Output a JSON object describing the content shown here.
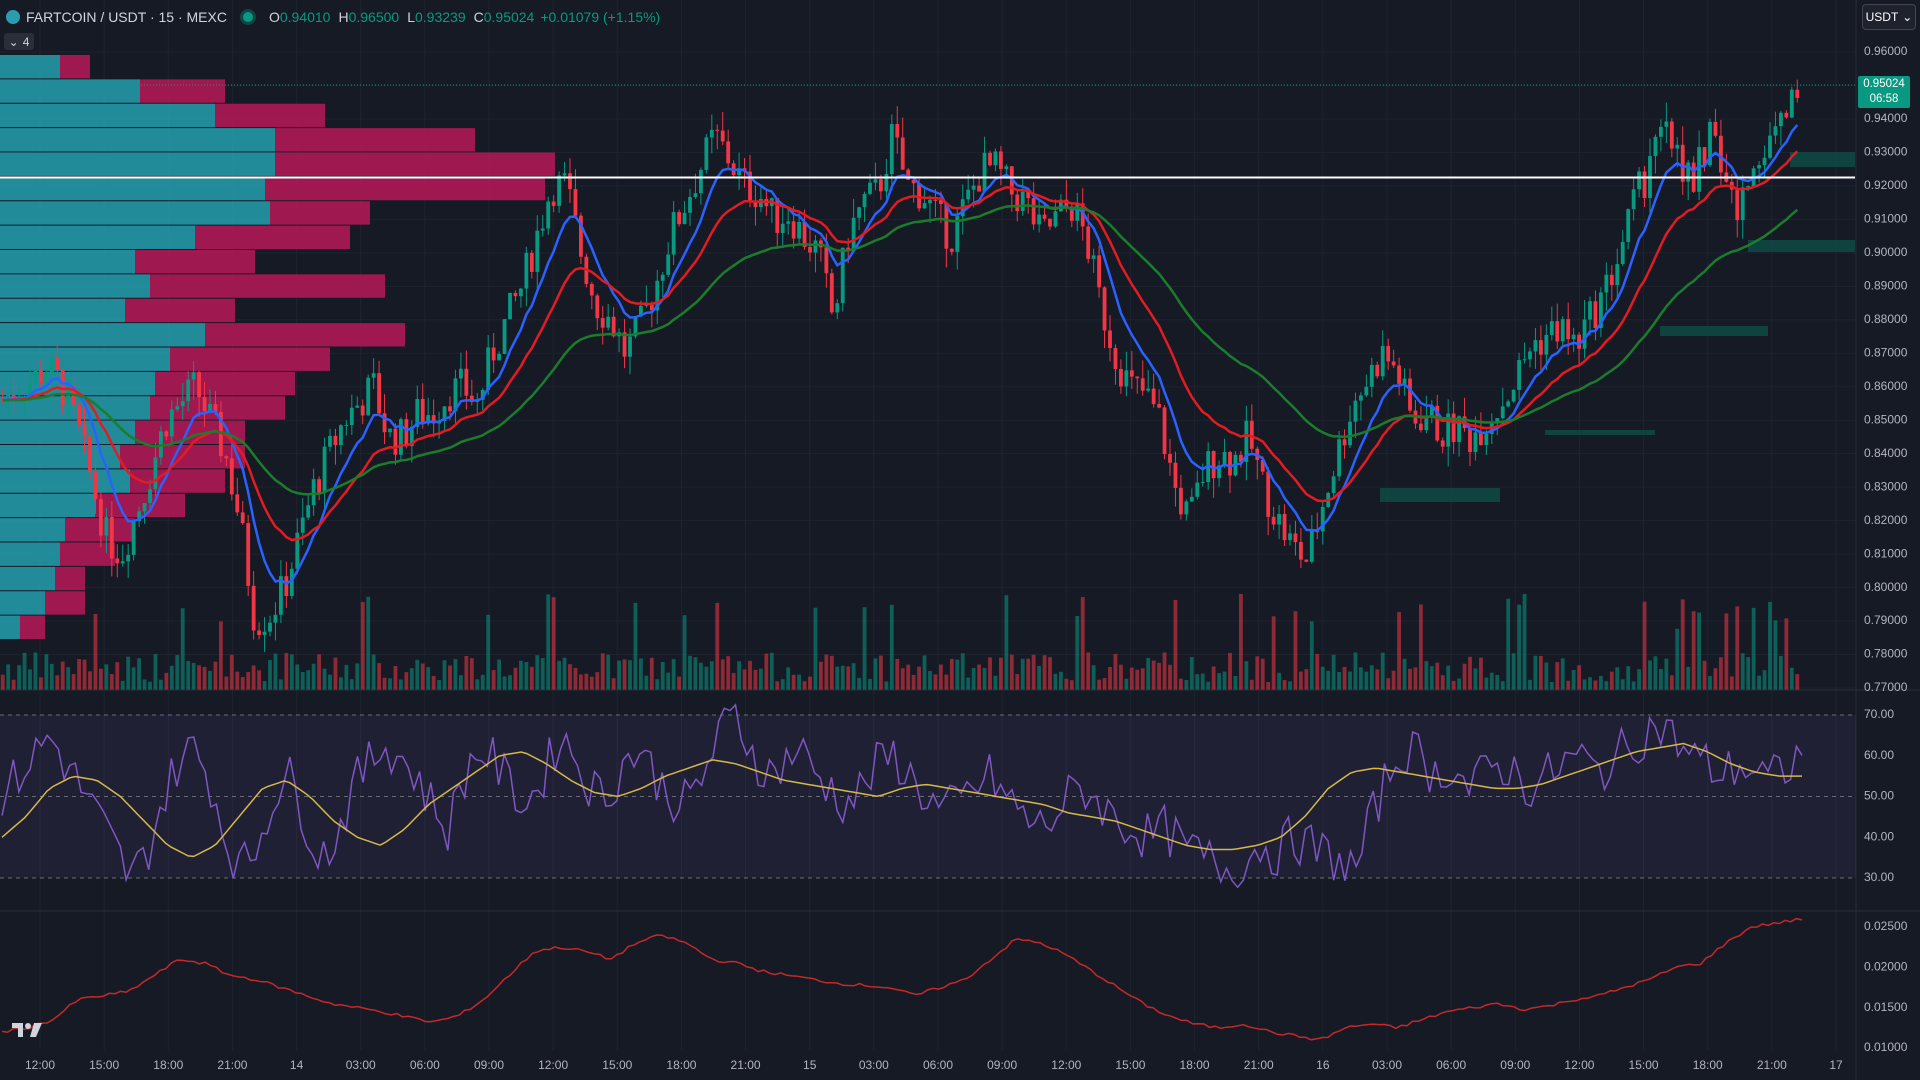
{
  "header": {
    "symbol_title": "FARTCOIN / USDT · 15 · MEXC",
    "ohlc": [
      {
        "key": "O",
        "value": "0.94010"
      },
      {
        "key": "H",
        "value": "0.96500"
      },
      {
        "key": "L",
        "value": "0.93239"
      },
      {
        "key": "C",
        "value": "0.95024"
      }
    ],
    "change": "+0.01079 (+1.15%)",
    "indicator_count": "4",
    "currency": "USDT"
  },
  "last_price": {
    "price": "0.95024",
    "countdown": "06:58"
  },
  "price_axis": {
    "labels": [
      "0.96000",
      "0.95000",
      "0.94000",
      "0.93000",
      "0.92000",
      "0.91000",
      "0.90000",
      "0.89000",
      "0.88000",
      "0.87000",
      "0.86000",
      "0.85000",
      "0.84000",
      "0.83000",
      "0.82000",
      "0.81000",
      "0.80000",
      "0.79000",
      "0.78000",
      "0.77000"
    ],
    "ylim": [
      0.77,
      0.96
    ]
  },
  "rsi_axis": {
    "labels": [
      "70.00",
      "60.00",
      "50.00",
      "40.00",
      "30.00"
    ],
    "ylim": [
      25,
      73
    ]
  },
  "ind_axis": {
    "labels": [
      "0.02500",
      "0.02000",
      "0.01500",
      "0.01000"
    ],
    "ylim": [
      0.0095,
      0.0265
    ]
  },
  "time_axis": {
    "labels": [
      "12:00",
      "15:00",
      "18:00",
      "21:00",
      "14",
      "03:00",
      "06:00",
      "09:00",
      "12:00",
      "15:00",
      "18:00",
      "21:00",
      "15",
      "03:00",
      "06:00",
      "09:00",
      "12:00",
      "15:00",
      "18:00",
      "21:00",
      "16",
      "03:00",
      "06:00",
      "09:00",
      "12:00",
      "15:00",
      "18:00",
      "21:00",
      "17"
    ]
  },
  "horizontal_line_price": 0.9225,
  "colors": {
    "background": "#161a25",
    "up": "#089981",
    "down": "#f23645",
    "ema_fast": "#2962ff",
    "ema_mid": "#e31b23",
    "ema_slow": "#1b7d2b",
    "rsi": "#7e57c2",
    "rsi_ma": "#d4b84a",
    "indicator": "#c62828",
    "vp_up": "#26a7b8",
    "vp_down": "#c2185b"
  },
  "chart_data": [
    {
      "type": "candlestick",
      "title": "FARTCOIN / USDT",
      "xlabel": "",
      "ylabel": "",
      "ylim": [
        0.77,
        0.96
      ],
      "description_points": "approximate hourly closes over ~3.5 days of 15-minute candles",
      "series": [
        {
          "name": "close_path",
          "values": [
            0.856,
            0.86,
            0.862,
            0.866,
            0.86,
            0.848,
            0.832,
            0.815,
            0.81,
            0.822,
            0.835,
            0.85,
            0.855,
            0.86,
            0.85,
            0.84,
            0.82,
            0.79,
            0.792,
            0.8,
            0.815,
            0.83,
            0.84,
            0.85,
            0.855,
            0.86,
            0.845,
            0.845,
            0.852,
            0.852,
            0.858,
            0.86,
            0.855,
            0.87,
            0.88,
            0.89,
            0.905,
            0.92,
            0.92,
            0.9,
            0.885,
            0.88,
            0.87,
            0.878,
            0.89,
            0.905,
            0.915,
            0.925,
            0.935,
            0.928,
            0.92,
            0.918,
            0.91,
            0.912,
            0.905,
            0.9,
            0.88,
            0.905,
            0.915,
            0.918,
            0.935,
            0.92,
            0.918,
            0.91,
            0.905,
            0.915,
            0.925,
            0.925,
            0.918,
            0.915,
            0.905,
            0.91,
            0.915,
            0.905,
            0.885,
            0.87,
            0.86,
            0.858,
            0.85,
            0.83,
            0.82,
            0.835,
            0.84,
            0.838,
            0.845,
            0.83,
            0.82,
            0.812,
            0.808,
            0.825,
            0.84,
            0.855,
            0.862,
            0.87,
            0.865,
            0.85,
            0.852,
            0.846,
            0.848,
            0.845,
            0.85,
            0.855,
            0.862,
            0.872,
            0.875,
            0.878,
            0.872,
            0.88,
            0.888,
            0.9,
            0.915,
            0.925,
            0.935,
            0.93,
            0.92,
            0.935,
            0.925,
            0.91,
            0.925,
            0.935,
            0.94,
            0.95
          ]
        }
      ]
    },
    {
      "type": "line",
      "title": "RSI",
      "ylim": [
        25,
        73
      ],
      "series": [
        {
          "name": "rsi",
          "values": [
            50,
            55,
            60,
            65,
            58,
            52,
            45,
            38,
            30,
            35,
            48,
            58,
            62,
            55,
            40,
            32,
            38,
            50,
            55,
            45,
            35,
            40,
            52,
            58,
            63,
            60,
            55,
            48,
            42,
            55,
            62,
            58,
            52,
            48,
            55,
            65,
            60,
            52,
            50,
            58,
            62,
            55,
            50,
            48,
            55,
            65,
            70,
            62,
            55,
            58,
            62,
            56,
            52,
            48,
            52,
            58,
            60,
            55,
            50,
            46,
            48,
            52,
            55,
            50,
            46,
            42,
            45,
            50,
            52,
            48,
            44,
            42,
            40,
            42,
            38,
            36,
            34,
            32,
            34,
            38,
            36,
            40,
            38,
            36,
            34,
            32,
            45,
            55,
            62,
            60,
            55,
            58,
            52,
            55,
            58,
            56,
            52,
            55,
            58,
            60,
            56,
            58,
            62,
            65,
            68,
            64,
            60,
            58,
            55,
            58,
            56,
            54,
            57,
            60
          ]
        },
        {
          "name": "rsi_ma",
          "values": [
            40,
            45,
            52,
            55,
            54,
            50,
            44,
            38,
            35,
            38,
            45,
            52,
            54,
            50,
            44,
            40,
            38,
            42,
            48,
            52,
            56,
            60,
            61,
            58,
            54,
            51,
            50,
            52,
            55,
            57,
            59,
            58,
            56,
            54,
            53,
            52,
            51,
            50,
            52,
            53,
            52,
            51,
            50,
            49,
            48,
            46,
            45,
            44,
            42,
            40,
            38,
            37,
            37,
            38,
            40,
            45,
            52,
            56,
            57,
            56,
            55,
            54,
            53,
            52,
            52,
            53,
            55,
            57,
            59,
            61,
            62,
            63,
            61,
            58,
            56,
            55,
            55
          ]
        }
      ]
    },
    {
      "type": "line",
      "title": "",
      "ylim": [
        0.0095,
        0.0265
      ],
      "series": [
        {
          "name": "indicator",
          "values": [
            0.012,
            0.0125,
            0.0135,
            0.016,
            0.0165,
            0.017,
            0.019,
            0.021,
            0.0205,
            0.019,
            0.0185,
            0.0175,
            0.0165,
            0.0155,
            0.015,
            0.0145,
            0.0138,
            0.0132,
            0.014,
            0.016,
            0.019,
            0.022,
            0.0225,
            0.022,
            0.021,
            0.023,
            0.024,
            0.023,
            0.021,
            0.0205,
            0.0195,
            0.019,
            0.0185,
            0.018,
            0.0178,
            0.0175,
            0.0165,
            0.0175,
            0.0185,
            0.021,
            0.0235,
            0.023,
            0.0215,
            0.0195,
            0.0175,
            0.0155,
            0.014,
            0.013,
            0.0125,
            0.013,
            0.012,
            0.0115,
            0.011,
            0.0125,
            0.013,
            0.0125,
            0.0135,
            0.0145,
            0.015,
            0.0155,
            0.0148,
            0.0152,
            0.016,
            0.0165,
            0.0175,
            0.0185,
            0.02,
            0.0205,
            0.023,
            0.025,
            0.0255,
            0.026
          ]
        }
      ]
    }
  ]
}
